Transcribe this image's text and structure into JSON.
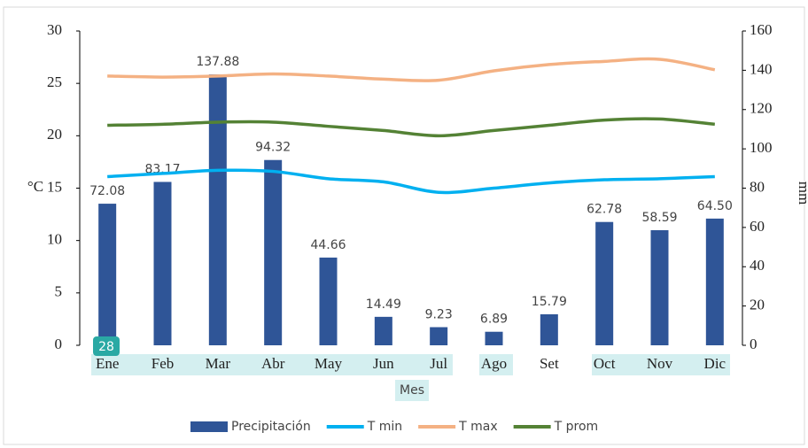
{
  "chart_data": {
    "type": "bar-line",
    "categories": [
      "Ene",
      "Feb",
      "Mar",
      "Abr",
      "May",
      "Jun",
      "Jul",
      "Ago",
      "Set",
      "Oct",
      "Nov",
      "Dic"
    ],
    "series": [
      {
        "name": "Precipitación",
        "type": "bar",
        "axis": "y2",
        "color": "#2f5597",
        "values": [
          72.08,
          83.17,
          137.88,
          94.32,
          44.66,
          14.49,
          9.23,
          6.89,
          15.79,
          62.78,
          58.59,
          64.5
        ],
        "value_labels": [
          "72.08",
          "83.17",
          "137.88",
          "94.32",
          "44.66",
          "14.49",
          "9.23",
          "6.89",
          "15.79",
          "62.78",
          "58.59",
          "64.50"
        ]
      },
      {
        "name": "T min",
        "type": "line",
        "color": "#00b0f0",
        "values": [
          16.1,
          16.4,
          16.7,
          16.6,
          15.9,
          15.6,
          14.6,
          15.0,
          15.5,
          15.8,
          15.9,
          16.1
        ]
      },
      {
        "name": "T max",
        "type": "line",
        "color": "#f4b183",
        "values": [
          25.7,
          25.6,
          25.7,
          25.9,
          25.7,
          25.4,
          25.3,
          26.2,
          26.8,
          27.1,
          27.3,
          26.3
        ]
      },
      {
        "name": "T prom",
        "type": "line",
        "color": "#548235",
        "values": [
          21.0,
          21.1,
          21.3,
          21.3,
          20.9,
          20.5,
          20.0,
          20.5,
          21.0,
          21.5,
          21.6,
          21.1
        ]
      }
    ],
    "x_label": "Mes",
    "y_label": "°C",
    "y2_label": "mm",
    "ylim": [
      0,
      30
    ],
    "yticks": [
      0,
      5,
      10,
      15,
      20,
      25,
      30
    ],
    "y2lim": [
      0,
      160
    ],
    "y2ticks": [
      0,
      20,
      40,
      60,
      80,
      100,
      120,
      140,
      160
    ],
    "grid": false,
    "legend": "bottom",
    "annotation": "28"
  }
}
